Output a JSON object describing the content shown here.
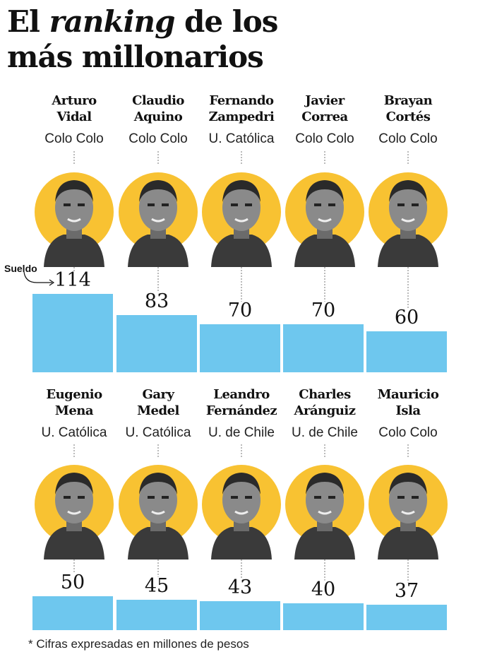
{
  "title": {
    "line1_a": "El ",
    "line1_em": "ranking",
    "line1_b": " de los",
    "line2": "más millonarios"
  },
  "sueldo_label": "Sueldo",
  "footnote": "* Cifras expresadas en millones de pesos",
  "colors": {
    "bar": "#6ec7ee",
    "circle": "#f8c232"
  },
  "chart_data": {
    "type": "bar",
    "title": "El ranking de los más millonarios",
    "categories": [
      "Arturo Vidal",
      "Claudio Aquino",
      "Fernando Zampedri",
      "Javier Correa",
      "Brayan Cortés",
      "Eugenio Mena",
      "Gary Medel",
      "Leandro Fernández",
      "Charles Aránguiz",
      "Mauricio Isla"
    ],
    "values": [
      114,
      83,
      70,
      70,
      60,
      50,
      45,
      43,
      40,
      37
    ],
    "ylim": [
      0,
      114
    ]
  },
  "players": [
    {
      "name1": "Arturo",
      "name2": "Vidal",
      "club": "Colo Colo",
      "value": "114"
    },
    {
      "name1": "Claudio",
      "name2": "Aquino",
      "club": "Colo Colo",
      "value": "83"
    },
    {
      "name1": "Fernando",
      "name2": "Zampedri",
      "club": "U. Católica",
      "value": "70"
    },
    {
      "name1": "Javier",
      "name2": "Correa",
      "club": "Colo Colo",
      "value": "70"
    },
    {
      "name1": "Brayan",
      "name2": "Cortés",
      "club": "Colo Colo",
      "value": "60"
    },
    {
      "name1": "Eugenio",
      "name2": "Mena",
      "club": "U. Católica",
      "value": "50"
    },
    {
      "name1": "Gary",
      "name2": "Medel",
      "club": "U. Católica",
      "value": "45"
    },
    {
      "name1": "Leandro",
      "name2": "Fernández",
      "club": "U. de Chile",
      "value": "43"
    },
    {
      "name1": "Charles",
      "name2": "Aránguiz",
      "club": "U. de Chile",
      "value": "40"
    },
    {
      "name1": "Mauricio",
      "name2": "Isla",
      "club": "Colo Colo",
      "value": "37"
    }
  ]
}
